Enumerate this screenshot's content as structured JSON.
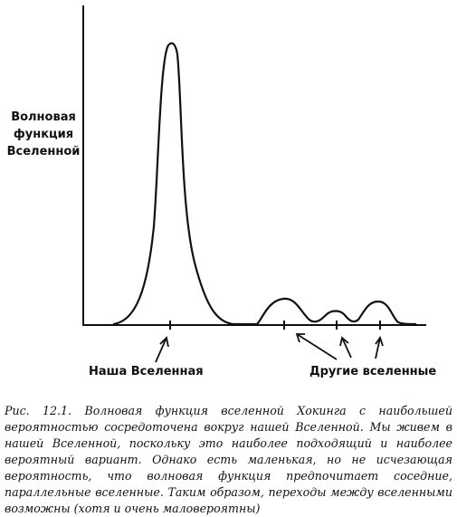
{
  "axis_label_lines": [
    "Волновая",
    "функция",
    "Вселенной"
  ],
  "labels": {
    "our_universe": "Наша Вселенная",
    "other_universes": "Другие вселенные"
  },
  "caption": {
    "number": "Рис. 12.1.",
    "text": "Волновая функция вселенной Хокинга с наибольшей вероятностью сосредоточена вокруг нашей Вселенной. Мы живем в нашей Вселенной, поскольку это наиболее подходящий и наиболее вероятный вариант. Однако есть маленькая, но не исчезающая вероятность, что волновая функция предпочитает соседние, параллельные вселенные. Таким образом, переходы между вселенными возможны (хотя и очень маловероятны)"
  },
  "colors": {
    "ink": "#111111",
    "background": "#ffffff"
  },
  "peaks": [
    {
      "name": "our-universe-peak",
      "relative_height": 1.0
    },
    {
      "name": "other-universe-peak-1",
      "relative_height": 0.09
    },
    {
      "name": "other-universe-peak-2",
      "relative_height": 0.05
    },
    {
      "name": "other-universe-peak-3",
      "relative_height": 0.08
    }
  ]
}
